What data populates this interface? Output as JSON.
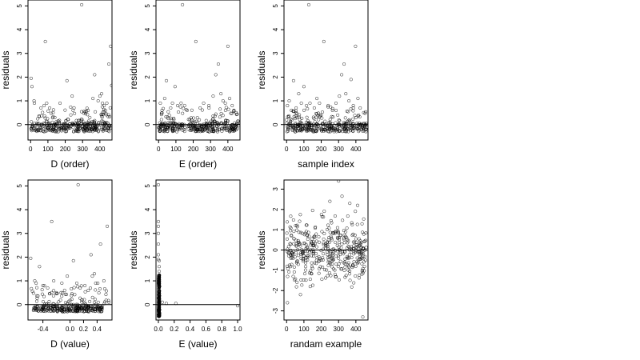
{
  "chart_data": [
    {
      "type": "scatter",
      "xlabel": "D (order)",
      "ylabel": "residuals",
      "xlim": [
        -15,
        470
      ],
      "ylim": [
        -0.65,
        5.25
      ],
      "xticks": [
        0,
        100,
        200,
        300,
        400
      ],
      "yticks": [
        0,
        1,
        2,
        3,
        4,
        5
      ],
      "hline": 0,
      "series": [
        {
          "x": [
            3,
            8,
            20,
            22,
            60,
            78,
            85,
            93,
            110,
            130,
            140,
            170,
            210,
            240,
            295,
            332,
            360,
            370,
            390,
            400,
            410,
            415,
            425,
            432,
            440,
            452,
            462,
            468
          ],
          "y": [
            1.95,
            1.6,
            1.0,
            0.9,
            0.7,
            0.8,
            3.5,
            0.9,
            0.7,
            0.5,
            0.3,
            0.9,
            1.85,
            1.2,
            5.05,
            0.6,
            1.1,
            2.1,
            1.0,
            1.2,
            1.3,
            0.9,
            0.8,
            0.6,
            0.9,
            2.55,
            3.3,
            1.65
          ]
        }
      ]
    },
    {
      "type": "scatter",
      "xlabel": "E (order)",
      "ylabel": "residuals",
      "xlim": [
        -15,
        470
      ],
      "ylim": [
        -0.65,
        5.25
      ],
      "xticks": [
        0,
        100,
        200,
        300,
        400
      ],
      "yticks": [
        0,
        1,
        2,
        3,
        4,
        5
      ],
      "hline": 0,
      "series": [
        {
          "x": [
            10,
            20,
            35,
            45,
            70,
            80,
            95,
            110,
            130,
            138,
            150,
            165,
            215,
            240,
            260,
            290,
            315,
            330,
            345,
            360,
            372,
            385,
            400,
            410,
            425,
            435,
            448
          ],
          "y": [
            0.9,
            0.6,
            1.1,
            1.85,
            0.7,
            0.9,
            1.6,
            0.8,
            0.9,
            5.05,
            0.8,
            0.6,
            3.5,
            0.7,
            0.9,
            0.8,
            1.2,
            2.1,
            2.55,
            1.3,
            1.0,
            0.9,
            3.3,
            1.1,
            0.8,
            0.6,
            0.5
          ]
        }
      ]
    },
    {
      "type": "scatter",
      "xlabel": "sample index",
      "ylabel": "residuals",
      "xlim": [
        -15,
        470
      ],
      "ylim": [
        -0.65,
        5.25
      ],
      "xticks": [
        0,
        100,
        200,
        300,
        400
      ],
      "yticks": [
        0,
        1,
        2,
        3,
        4,
        5
      ],
      "hline": 0,
      "series": [
        {
          "x": [
            5,
            15,
            28,
            40,
            55,
            70,
            85,
            100,
            115,
            128,
            135,
            160,
            175,
            190,
            215,
            240,
            265,
            285,
            305,
            318,
            332,
            342,
            360,
            372,
            385,
            398,
            412,
            425,
            445
          ],
          "y": [
            0.8,
            1.0,
            0.6,
            1.85,
            0.7,
            1.3,
            0.9,
            1.6,
            0.8,
            5.05,
            0.9,
            0.7,
            1.1,
            0.9,
            3.5,
            0.8,
            0.6,
            0.9,
            1.2,
            2.1,
            2.55,
            1.3,
            1.0,
            1.9,
            0.8,
            3.3,
            1.1,
            0.7,
            0.5
          ]
        }
      ]
    },
    {
      "type": "scatter",
      "xlabel": "D (value)",
      "ylabel": "residuals",
      "xlim": [
        -0.62,
        0.62
      ],
      "ylim": [
        -0.65,
        5.25
      ],
      "xticks": [
        -0.4,
        0.0,
        0.2,
        0.4
      ],
      "xticklabels": [
        "-0.4",
        "0.0",
        "0.2",
        "0.4"
      ],
      "yticks": [
        0,
        1,
        2,
        3,
        4,
        5
      ],
      "hline": 0,
      "series": [
        {
          "x": [
            -0.58,
            -0.52,
            -0.5,
            -0.45,
            -0.4,
            -0.33,
            -0.27,
            -0.24,
            -0.2,
            -0.12,
            -0.08,
            -0.04,
            0.05,
            0.1,
            0.12,
            0.15,
            0.22,
            0.27,
            0.31,
            0.33,
            0.36,
            0.38,
            0.41,
            0.45,
            0.5,
            0.55
          ],
          "y": [
            1.95,
            1.0,
            0.9,
            1.6,
            0.8,
            0.7,
            3.5,
            1.0,
            0.5,
            0.9,
            0.6,
            1.2,
            1.85,
            0.9,
            5.05,
            0.7,
            0.8,
            0.6,
            2.1,
            1.2,
            1.3,
            0.9,
            0.9,
            2.55,
            1.0,
            3.3
          ]
        }
      ]
    },
    {
      "type": "scatter",
      "xlabel": "E (value)",
      "ylabel": "residuals",
      "xlim": [
        -0.03,
        1.03
      ],
      "ylim": [
        -0.65,
        5.25
      ],
      "xticks": [
        0.0,
        0.2,
        0.4,
        0.6,
        0.8,
        1.0
      ],
      "xticklabels": [
        "0.0",
        "0.2",
        "0.4",
        "0.6",
        "0.8",
        "1.0"
      ],
      "yticks": [
        0,
        1,
        2,
        3,
        4,
        5
      ],
      "hline": 0,
      "series": [
        {
          "x": [
            0.0,
            0.0,
            0.0,
            0.0,
            0.0,
            0.0,
            0.0,
            0.01,
            0.01,
            0.01,
            0.01,
            0.0,
            0.0,
            0.05,
            0.1,
            0.22,
            1.0
          ],
          "y": [
            5.05,
            3.5,
            3.3,
            3.0,
            2.55,
            2.1,
            1.9,
            1.85,
            1.6,
            1.4,
            1.2,
            1.0,
            0.9,
            0.1,
            0.05,
            0.05,
            -0.05
          ]
        }
      ]
    },
    {
      "type": "scatter",
      "xlabel": "randam example",
      "ylabel": "residuals",
      "xlim": [
        -15,
        470
      ],
      "ylim": [
        -3.45,
        3.45
      ],
      "xticks": [
        0,
        100,
        200,
        300,
        400
      ],
      "yticks": [
        -3,
        -2,
        -1,
        0,
        1,
        2,
        3
      ],
      "hline": 0,
      "series": [
        {
          "x": [
            300,
            320,
            250,
            5,
            440,
            410,
            80,
            150,
            365
          ],
          "y": [
            3.4,
            2.65,
            2.4,
            -2.6,
            -3.3,
            2.2,
            -2.2,
            1.95,
            2.3
          ]
        }
      ]
    }
  ]
}
